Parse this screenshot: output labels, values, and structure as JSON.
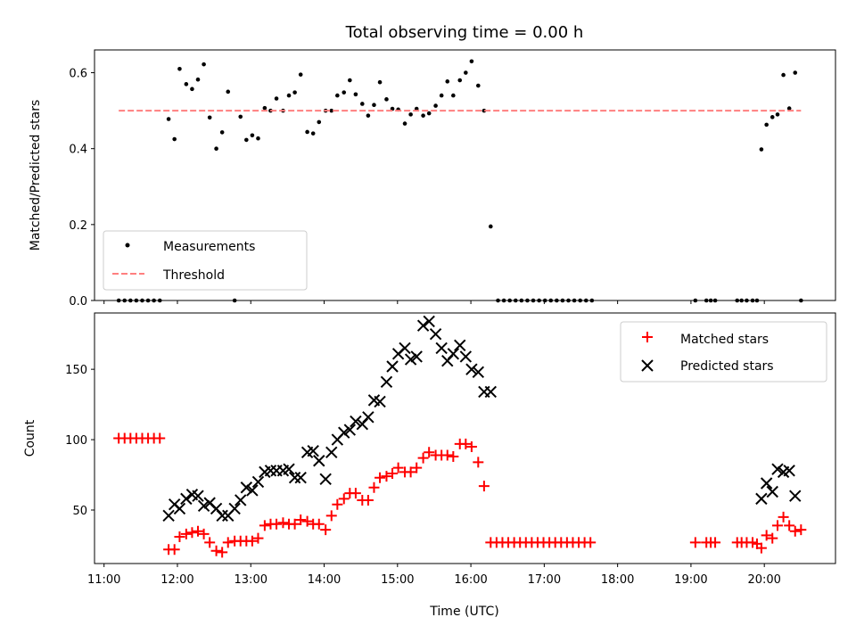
{
  "chart_data": [
    {
      "panel": "top",
      "type": "scatter",
      "title": "Total observing time = 0.00 h",
      "ylabel": "Matched/Predicted stars",
      "xlabel": "",
      "xlim": [
        10.87,
        20.97
      ],
      "ylim": [
        0.0,
        0.66
      ],
      "yticks": [
        0.0,
        0.2,
        0.4,
        0.6
      ],
      "ytick_labels": [
        "0.0",
        "0.2",
        "0.4",
        "0.6"
      ],
      "grid": false,
      "legend_position": "lower-left",
      "series": [
        {
          "name": "Measurements",
          "marker": "dot",
          "color": "#000000",
          "points": [
            [
              11.2,
              0.0
            ],
            [
              11.28,
              0.0
            ],
            [
              11.36,
              0.0
            ],
            [
              11.44,
              0.0
            ],
            [
              11.52,
              0.0
            ],
            [
              11.6,
              0.0
            ],
            [
              11.68,
              0.0
            ],
            [
              11.76,
              0.0
            ],
            [
              11.88,
              0.478
            ],
            [
              11.96,
              0.425
            ],
            [
              12.03,
              0.61
            ],
            [
              12.12,
              0.57
            ],
            [
              12.2,
              0.557
            ],
            [
              12.28,
              0.582
            ],
            [
              12.36,
              0.622
            ],
            [
              12.44,
              0.482
            ],
            [
              12.53,
              0.4
            ],
            [
              12.61,
              0.443
            ],
            [
              12.69,
              0.55
            ],
            [
              12.78,
              0.0
            ],
            [
              12.86,
              0.484
            ],
            [
              12.94,
              0.423
            ],
            [
              13.02,
              0.435
            ],
            [
              13.1,
              0.427
            ],
            [
              13.19,
              0.507
            ],
            [
              13.27,
              0.5
            ],
            [
              13.35,
              0.532
            ],
            [
              13.44,
              0.5
            ],
            [
              13.52,
              0.54
            ],
            [
              13.6,
              0.548
            ],
            [
              13.68,
              0.595
            ],
            [
              13.77,
              0.444
            ],
            [
              13.85,
              0.44
            ],
            [
              13.93,
              0.47
            ],
            [
              14.02,
              0.5
            ],
            [
              14.1,
              0.5
            ],
            [
              14.18,
              0.54
            ],
            [
              14.27,
              0.548
            ],
            [
              14.35,
              0.58
            ],
            [
              14.43,
              0.543
            ],
            [
              14.52,
              0.518
            ],
            [
              14.6,
              0.487
            ],
            [
              14.68,
              0.515
            ],
            [
              14.76,
              0.575
            ],
            [
              14.85,
              0.53
            ],
            [
              14.93,
              0.505
            ],
            [
              15.01,
              0.503
            ],
            [
              15.1,
              0.466
            ],
            [
              15.18,
              0.49
            ],
            [
              15.26,
              0.505
            ],
            [
              15.35,
              0.487
            ],
            [
              15.43,
              0.493
            ],
            [
              15.52,
              0.513
            ],
            [
              15.6,
              0.54
            ],
            [
              15.68,
              0.577
            ],
            [
              15.76,
              0.54
            ],
            [
              15.85,
              0.58
            ],
            [
              15.93,
              0.6
            ],
            [
              16.01,
              0.63
            ],
            [
              16.1,
              0.566
            ],
            [
              16.18,
              0.5
            ],
            [
              16.27,
              0.195
            ],
            [
              16.37,
              0.0
            ],
            [
              16.45,
              0.0
            ],
            [
              16.53,
              0.0
            ],
            [
              16.61,
              0.0
            ],
            [
              16.69,
              0.0
            ],
            [
              16.77,
              0.0
            ],
            [
              16.85,
              0.0
            ],
            [
              16.93,
              0.0
            ],
            [
              17.01,
              0.0
            ],
            [
              17.09,
              0.0
            ],
            [
              17.17,
              0.0
            ],
            [
              17.25,
              0.0
            ],
            [
              17.33,
              0.0
            ],
            [
              17.41,
              0.0
            ],
            [
              17.49,
              0.0
            ],
            [
              17.57,
              0.0
            ],
            [
              17.65,
              0.0
            ],
            [
              19.06,
              0.0
            ],
            [
              19.21,
              0.0
            ],
            [
              19.27,
              0.0
            ],
            [
              19.33,
              0.0
            ],
            [
              19.63,
              0.0
            ],
            [
              19.69,
              0.0
            ],
            [
              19.76,
              0.0
            ],
            [
              19.84,
              0.0
            ],
            [
              19.9,
              0.0
            ],
            [
              19.96,
              0.398
            ],
            [
              20.03,
              0.463
            ],
            [
              20.11,
              0.483
            ],
            [
              20.18,
              0.49
            ],
            [
              20.26,
              0.594
            ],
            [
              20.34,
              0.506
            ],
            [
              20.42,
              0.6
            ],
            [
              20.5,
              0.0
            ]
          ]
        },
        {
          "name": "Threshold",
          "style": "dashed-line",
          "color": "#ff7f7f",
          "points": [
            [
              11.2,
              0.5
            ],
            [
              20.5,
              0.5
            ]
          ]
        }
      ]
    },
    {
      "panel": "bottom",
      "type": "scatter",
      "title": "",
      "ylabel": "Count",
      "xlabel": "Time (UTC)",
      "xlim": [
        10.87,
        20.97
      ],
      "ylim": [
        12,
        190
      ],
      "yticks": [
        50,
        100,
        150
      ],
      "ytick_labels": [
        "50",
        "100",
        "150"
      ],
      "xticks": [
        11,
        12,
        13,
        14,
        15,
        16,
        17,
        18,
        19,
        20
      ],
      "xtick_labels": [
        "11:00",
        "12:00",
        "13:00",
        "14:00",
        "15:00",
        "16:00",
        "17:00",
        "18:00",
        "19:00",
        "20:00"
      ],
      "grid": false,
      "legend_position": "top-right",
      "series": [
        {
          "name": "Matched stars",
          "marker": "plus",
          "color": "#ff0000",
          "points": [
            [
              11.2,
              101
            ],
            [
              11.28,
              101
            ],
            [
              11.36,
              101
            ],
            [
              11.44,
              101
            ],
            [
              11.52,
              101
            ],
            [
              11.6,
              101
            ],
            [
              11.68,
              101
            ],
            [
              11.76,
              101
            ],
            [
              11.88,
              22
            ],
            [
              11.96,
              22
            ],
            [
              12.03,
              31
            ],
            [
              12.12,
              33
            ],
            [
              12.2,
              34
            ],
            [
              12.28,
              35
            ],
            [
              12.36,
              33
            ],
            [
              12.44,
              27
            ],
            [
              12.53,
              21
            ],
            [
              12.61,
              20
            ],
            [
              12.69,
              27
            ],
            [
              12.78,
              28
            ],
            [
              12.86,
              28
            ],
            [
              12.94,
              28
            ],
            [
              13.02,
              28
            ],
            [
              13.1,
              30
            ],
            [
              13.19,
              39
            ],
            [
              13.27,
              40
            ],
            [
              13.35,
              40
            ],
            [
              13.44,
              41
            ],
            [
              13.52,
              40
            ],
            [
              13.6,
              40
            ],
            [
              13.68,
              43
            ],
            [
              13.77,
              42
            ],
            [
              13.85,
              40
            ],
            [
              13.93,
              40
            ],
            [
              14.02,
              36
            ],
            [
              14.1,
              46
            ],
            [
              14.18,
              54
            ],
            [
              14.27,
              58
            ],
            [
              14.35,
              62
            ],
            [
              14.43,
              62
            ],
            [
              14.52,
              57
            ],
            [
              14.6,
              57
            ],
            [
              14.68,
              66
            ],
            [
              14.76,
              73
            ],
            [
              14.85,
              74
            ],
            [
              14.93,
              76
            ],
            [
              15.01,
              80
            ],
            [
              15.1,
              77
            ],
            [
              15.18,
              77
            ],
            [
              15.26,
              80
            ],
            [
              15.35,
              87
            ],
            [
              15.43,
              91
            ],
            [
              15.52,
              89
            ],
            [
              15.6,
              89
            ],
            [
              15.68,
              89
            ],
            [
              15.76,
              88
            ],
            [
              15.85,
              97
            ],
            [
              15.93,
              97
            ],
            [
              16.01,
              95
            ],
            [
              16.1,
              84
            ],
            [
              16.18,
              67
            ],
            [
              16.27,
              27
            ],
            [
              16.35,
              27
            ],
            [
              16.43,
              27
            ],
            [
              16.51,
              27
            ],
            [
              16.59,
              27
            ],
            [
              16.67,
              27
            ],
            [
              16.75,
              27
            ],
            [
              16.83,
              27
            ],
            [
              16.91,
              27
            ],
            [
              16.99,
              27
            ],
            [
              17.07,
              27
            ],
            [
              17.15,
              27
            ],
            [
              17.23,
              27
            ],
            [
              17.31,
              27
            ],
            [
              17.39,
              27
            ],
            [
              17.47,
              27
            ],
            [
              17.55,
              27
            ],
            [
              17.63,
              27
            ],
            [
              19.06,
              27
            ],
            [
              19.21,
              27
            ],
            [
              19.27,
              27
            ],
            [
              19.33,
              27
            ],
            [
              19.63,
              27
            ],
            [
              19.69,
              27
            ],
            [
              19.76,
              27
            ],
            [
              19.84,
              27
            ],
            [
              19.9,
              26
            ],
            [
              19.96,
              23
            ],
            [
              20.03,
              32
            ],
            [
              20.11,
              30
            ],
            [
              20.18,
              39
            ],
            [
              20.26,
              45
            ],
            [
              20.34,
              39
            ],
            [
              20.42,
              35
            ],
            [
              20.5,
              36
            ]
          ]
        },
        {
          "name": "Predicted stars",
          "marker": "x",
          "color": "#000000",
          "points": [
            [
              11.88,
              46
            ],
            [
              11.96,
              54
            ],
            [
              12.03,
              51
            ],
            [
              12.12,
              58
            ],
            [
              12.2,
              61
            ],
            [
              12.28,
              60
            ],
            [
              12.36,
              53
            ],
            [
              12.44,
              55
            ],
            [
              12.53,
              51
            ],
            [
              12.61,
              46
            ],
            [
              12.69,
              46
            ],
            [
              12.78,
              51
            ],
            [
              12.86,
              57
            ],
            [
              12.94,
              66
            ],
            [
              13.02,
              64
            ],
            [
              13.1,
              70
            ],
            [
              13.19,
              77
            ],
            [
              13.27,
              78
            ],
            [
              13.35,
              78
            ],
            [
              13.44,
              78
            ],
            [
              13.52,
              79
            ],
            [
              13.6,
              73
            ],
            [
              13.68,
              73
            ],
            [
              13.77,
              91
            ],
            [
              13.85,
              92
            ],
            [
              13.93,
              85
            ],
            [
              14.02,
              72
            ],
            [
              14.1,
              91
            ],
            [
              14.18,
              100
            ],
            [
              14.27,
              105
            ],
            [
              14.35,
              107
            ],
            [
              14.43,
              113
            ],
            [
              14.52,
              111
            ],
            [
              14.6,
              116
            ],
            [
              14.68,
              128
            ],
            [
              14.76,
              127
            ],
            [
              14.85,
              141
            ],
            [
              14.93,
              152
            ],
            [
              15.01,
              161
            ],
            [
              15.1,
              165
            ],
            [
              15.18,
              157
            ],
            [
              15.26,
              159
            ],
            [
              15.35,
              181
            ],
            [
              15.43,
              184
            ],
            [
              15.52,
              175
            ],
            [
              15.6,
              165
            ],
            [
              15.68,
              156
            ],
            [
              15.76,
              161
            ],
            [
              15.85,
              167
            ],
            [
              15.93,
              159
            ],
            [
              16.01,
              150
            ],
            [
              16.1,
              148
            ],
            [
              16.18,
              134
            ],
            [
              16.27,
              134
            ],
            [
              19.96,
              58
            ],
            [
              20.03,
              69
            ],
            [
              20.11,
              63
            ],
            [
              20.18,
              79
            ],
            [
              20.26,
              77
            ],
            [
              20.34,
              78
            ],
            [
              20.42,
              60
            ]
          ]
        }
      ]
    }
  ]
}
